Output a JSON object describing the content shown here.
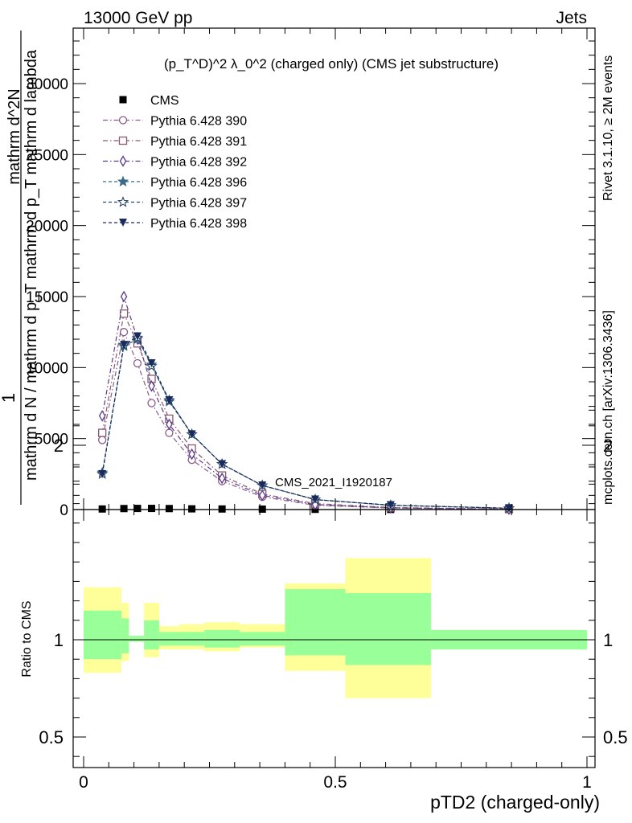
{
  "header": {
    "left": "13000 GeV pp",
    "right": "Jets"
  },
  "side_labels": {
    "rivet": "Rivet 3.1.10, ≥ 2M events",
    "mcplots": "mcplots.cern.ch [arXiv:1306.3436]"
  },
  "watermark": "CMS_2021_I1920187",
  "ylabel_main": {
    "numerator": "1",
    "denominator_line1": "mathrm d N / mathrm d p_T mathrm d p_T mathrm d lambda",
    "top_line": "mathrm d^2N"
  },
  "ylabel_ratio": "Ratio to CMS",
  "xlabel": "pTD2 (charged-only)",
  "chart_data": {
    "type": "line",
    "title": "(p_T^D)^2 λ_0^2 (charged only) (CMS jet substructure)",
    "x_range": [
      0,
      1
    ],
    "y_range_main": [
      0,
      38000
    ],
    "y_range_ratio": [
      0.35,
      2.3
    ],
    "y_ticks_main": [
      "0",
      "5000",
      "10000",
      "15000",
      "20000",
      "25000",
      "30000"
    ],
    "y_ticks_ratio": [
      "0.5",
      "1",
      "2"
    ],
    "x_ticks": [
      "0",
      "0.5",
      "1"
    ],
    "legend_position": "top-left",
    "x": [
      0.037,
      0.08,
      0.107,
      0.135,
      0.17,
      0.215,
      0.275,
      0.355,
      0.46,
      0.61,
      0.845
    ],
    "series": [
      {
        "name": "CMS",
        "color": "#000000",
        "marker": "filled-square",
        "values": [
          40,
          70,
          80,
          80,
          70,
          50,
          40,
          30,
          15,
          8,
          3
        ]
      },
      {
        "name": "Pythia 6.428 390",
        "color": "#8a5a8a",
        "marker": "open-circle",
        "dash": "dashdot",
        "values": [
          4900,
          12500,
          10300,
          7500,
          5400,
          3500,
          2000,
          900,
          300,
          110,
          20
        ]
      },
      {
        "name": "Pythia 6.428 391",
        "color": "#8a5a6e",
        "marker": "open-square",
        "dash": "dashdot",
        "values": [
          5400,
          13800,
          11700,
          9200,
          6400,
          4300,
          2400,
          1100,
          420,
          150,
          30
        ]
      },
      {
        "name": "Pythia 6.428 392",
        "color": "#5a3a8a",
        "marker": "open-diamond",
        "dash": "dashdot",
        "values": [
          6600,
          15000,
          12000,
          8700,
          6000,
          3900,
          2200,
          1000,
          350,
          120,
          25
        ]
      },
      {
        "name": "Pythia 6.428 396",
        "color": "#3a6a8a",
        "marker": "filled-star",
        "dash": "dashed",
        "values": [
          2600,
          11500,
          12000,
          10200,
          7600,
          5300,
          3200,
          1700,
          700,
          300,
          90
        ]
      },
      {
        "name": "Pythia 6.428 397",
        "color": "#2a4a6a",
        "marker": "open-star",
        "dash": "dashed",
        "values": [
          2500,
          11600,
          12100,
          10100,
          7700,
          5300,
          3200,
          1700,
          700,
          300,
          90
        ]
      },
      {
        "name": "Pythia 6.428 398",
        "color": "#1a2a5a",
        "marker": "filled-triangle-down",
        "dash": "dashed",
        "values": [
          2500,
          11600,
          12200,
          10300,
          7700,
          5300,
          3200,
          1700,
          710,
          310,
          95
        ]
      }
    ],
    "ratio_bands": {
      "edges": [
        0,
        0.075,
        0.09,
        0.12,
        0.15,
        0.19,
        0.24,
        0.31,
        0.4,
        0.52,
        0.69,
        1.0
      ],
      "inner_hi": [
        1.15,
        1.11,
        1.02,
        1.1,
        1.04,
        1.04,
        1.05,
        1.04,
        1.26,
        1.24,
        1.05
      ],
      "inner_lo": [
        0.9,
        0.93,
        0.99,
        0.95,
        0.97,
        0.97,
        0.96,
        0.97,
        0.92,
        0.87,
        0.95
      ],
      "outer_hi": [
        1.27,
        1.19,
        1.02,
        1.19,
        1.07,
        1.08,
        1.09,
        1.08,
        1.29,
        1.42,
        1.05
      ],
      "outer_lo": [
        0.83,
        0.89,
        0.99,
        0.91,
        0.95,
        0.95,
        0.94,
        0.96,
        0.84,
        0.7,
        0.95
      ]
    },
    "ratio_band_colors": {
      "inner": "#99ff99",
      "outer": "#ffff99"
    }
  }
}
